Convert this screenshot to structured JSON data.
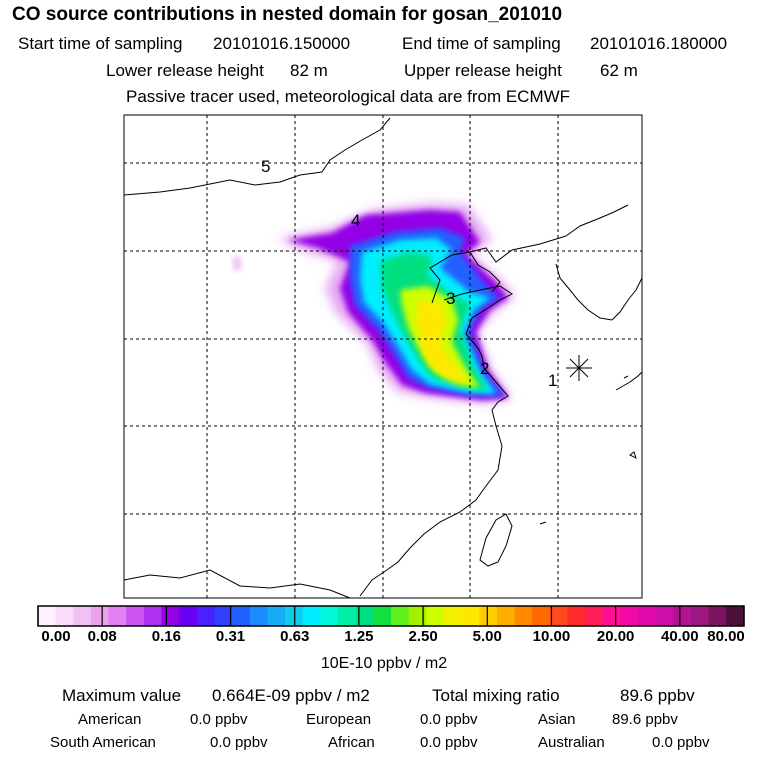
{
  "header": {
    "title": "CO  source contributions in nested domain for gosan_201010",
    "start_label": "Start time of sampling",
    "start_value": "20101016.150000",
    "end_label": "End time of sampling",
    "end_value": "20101016.180000",
    "lower_label": "Lower release height",
    "lower_value": "82 m",
    "upper_label": "Upper release height",
    "upper_value": "62 m",
    "note": "Passive tracer used, meteorological data are from ECMWF"
  },
  "map": {
    "point_labels": [
      "1",
      "2",
      "3",
      "4",
      "5"
    ],
    "receptor_symbol": "asterisk"
  },
  "legend": {
    "colors": [
      "#fff0ff",
      "#fadcfa",
      "#f3c0f3",
      "#eaa2ea",
      "#e080f2",
      "#cc55f2",
      "#b030f0",
      "#9400e6",
      "#6a00f2",
      "#4a20ff",
      "#3040ff",
      "#2060ff",
      "#1a8cff",
      "#18aaf5",
      "#10ccef",
      "#00eeff",
      "#00f7d7",
      "#00eda6",
      "#00df80",
      "#10e040",
      "#60f020",
      "#a0f000",
      "#ccff00",
      "#f0f000",
      "#ffe800",
      "#ffcc00",
      "#ffae00",
      "#ff8a00",
      "#ff6a00",
      "#ff4a20",
      "#ff2a2a",
      "#ff1e5a",
      "#ff0f96",
      "#f20aa8",
      "#e00aaa",
      "#cc10a8",
      "#b2148f",
      "#9a1880",
      "#7d145f",
      "#4a1238"
    ],
    "tick_labels": [
      "0.00",
      "0.08",
      "0.16",
      "0.31",
      "0.63",
      "1.25",
      "2.50",
      "5.00",
      "10.00",
      "20.00",
      "40.00",
      "80.00"
    ],
    "unit": "10E-10 ppbv / m2"
  },
  "stats": {
    "max_label": "Maximum value",
    "max_value": "0.664E-09 ppbv / m2",
    "total_label": "Total mixing ratio",
    "total_value": "89.6 ppbv",
    "regions": [
      {
        "name": "American",
        "value": "0.0 ppbv"
      },
      {
        "name": "European",
        "value": "0.0 ppbv"
      },
      {
        "name": "Asian",
        "value": "89.6 ppbv"
      },
      {
        "name": "South American",
        "value": "0.0 ppbv"
      },
      {
        "name": "African",
        "value": "0.0 ppbv"
      },
      {
        "name": "Australian",
        "value": "0.0 ppbv"
      }
    ]
  }
}
